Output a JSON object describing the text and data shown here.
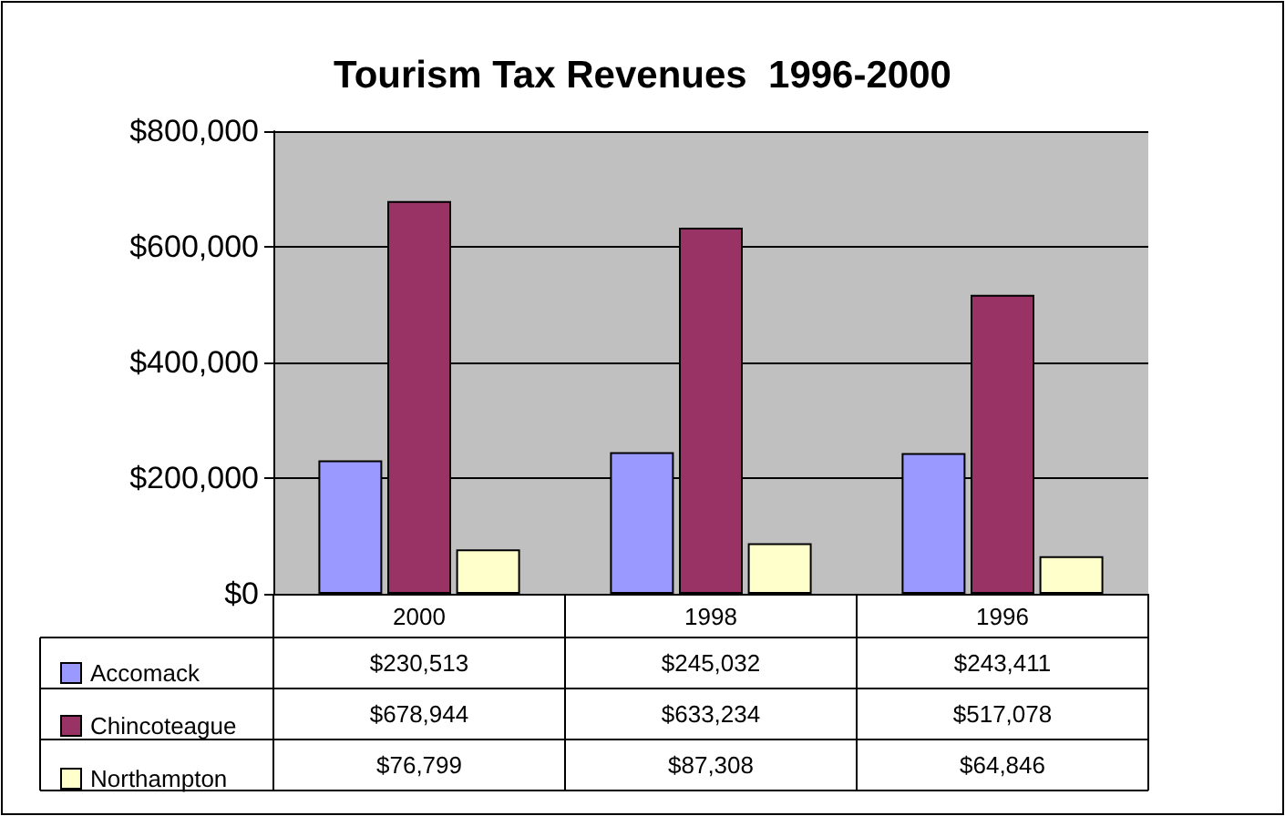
{
  "chart_data": {
    "type": "bar",
    "title": "Tourism Tax Revenues  1996-2000",
    "categories": [
      "2000",
      "1998",
      "1996"
    ],
    "series": [
      {
        "name": "Accomack",
        "color": "#9999ff",
        "values": [
          230513,
          245032,
          243411
        ],
        "value_labels": [
          "$230,513",
          "$245,032",
          "$243,411"
        ]
      },
      {
        "name": "Chincoteague",
        "color": "#993366",
        "values": [
          678944,
          633234,
          517078
        ],
        "value_labels": [
          "$678,944",
          "$633,234",
          "$517,078"
        ]
      },
      {
        "name": "Northampton",
        "color": "#ffffcc",
        "values": [
          76799,
          87308,
          64846
        ],
        "value_labels": [
          "$76,799",
          "$87,308",
          "$64,846"
        ]
      }
    ],
    "ylim": [
      0,
      800000
    ],
    "yticks": [
      {
        "value": 0,
        "label": "$0"
      },
      {
        "value": 200000,
        "label": "$200,000"
      },
      {
        "value": 400000,
        "label": "$400,000"
      },
      {
        "value": 600000,
        "label": "$600,000"
      },
      {
        "value": 800000,
        "label": "$800,000"
      }
    ],
    "grid": "y",
    "legend": "bottom"
  }
}
